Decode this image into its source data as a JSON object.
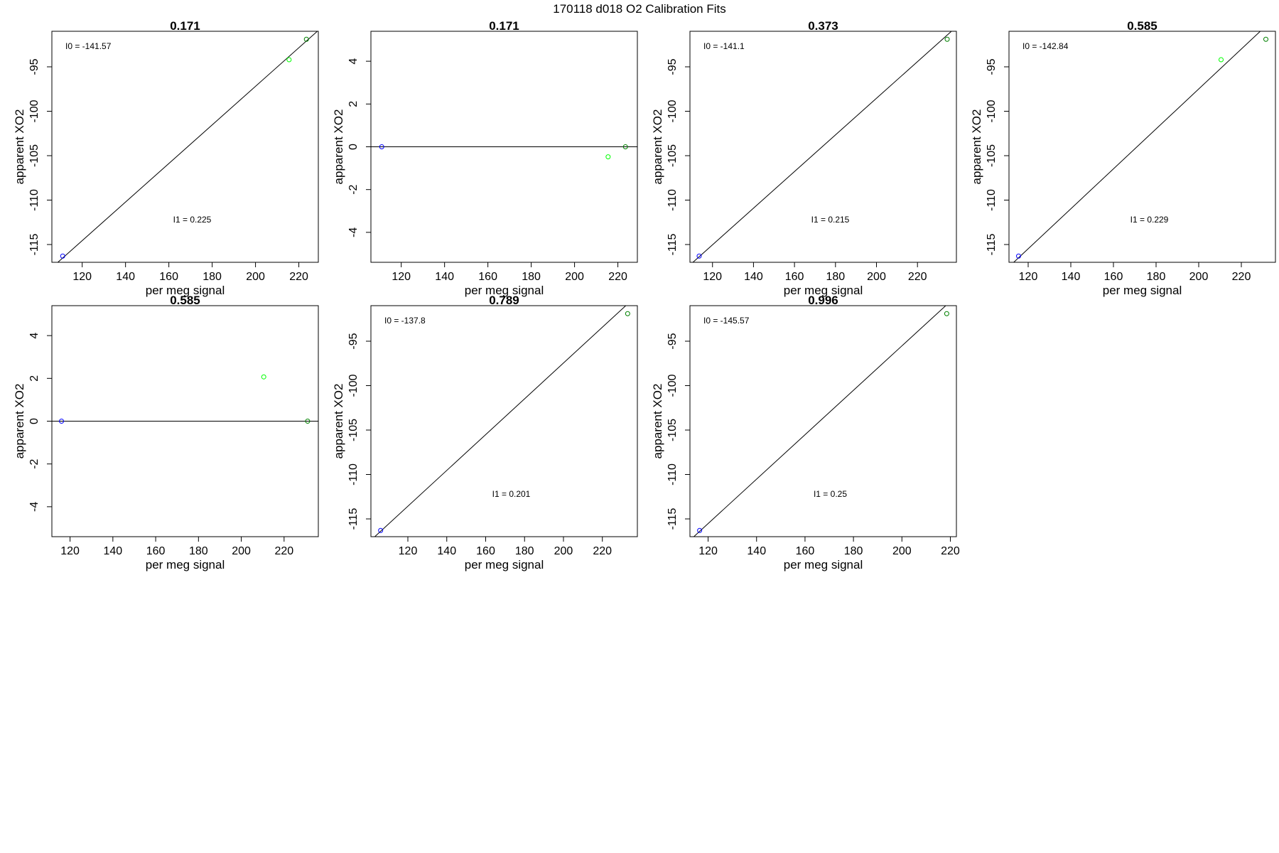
{
  "figure": {
    "title": "170118   d018   O2 Calibration Fits"
  },
  "chart_data": [
    {
      "type": "scatter",
      "title": "0.171",
      "xlabel": "per meg signal",
      "ylabel": "apparent XO2",
      "xlim": [
        106,
        229
      ],
      "ylim": [
        -117,
        -91
      ],
      "xticks": [
        120,
        140,
        160,
        180,
        200,
        220
      ],
      "xtick_labels": [
        "120",
        "140",
        "160",
        "180",
        "200",
        "220"
      ],
      "yticks": [
        -95,
        -100,
        -105,
        -110,
        -115
      ],
      "ytick_labels": [
        "-95",
        "-100",
        "-105",
        "-110",
        "-115"
      ],
      "series": [
        {
          "color": "#0000ff",
          "points": [
            {
              "x": 111,
              "y": -116.3
            }
          ]
        },
        {
          "color": "#00ff00",
          "points": [
            {
              "x": 215.5,
              "y": -94.2
            }
          ]
        },
        {
          "color": "#008000",
          "points": [
            {
              "x": 223.5,
              "y": -91.9
            }
          ]
        }
      ],
      "fit_line": {
        "x": [
          106,
          229
        ],
        "y": [
          -117.6,
          -90.9
        ]
      },
      "annotations": [
        {
          "text": "I0 =  -141.57",
          "pos": "top-left"
        },
        {
          "text": "I1 =  0.225",
          "pos": "center-bottom"
        }
      ]
    },
    {
      "type": "scatter",
      "title": "0.171",
      "xlabel": "per meg signal",
      "ylabel": "apparent XO2",
      "xlim": [
        106,
        229
      ],
      "ylim": [
        -5.4,
        5.4
      ],
      "xticks": [
        120,
        140,
        160,
        180,
        200,
        220
      ],
      "xtick_labels": [
        "120",
        "140",
        "160",
        "180",
        "200",
        "220"
      ],
      "yticks": [
        4,
        2,
        0,
        -2,
        -4
      ],
      "ytick_labels": [
        "4",
        "2",
        "0",
        "-2",
        "-4"
      ],
      "series": [
        {
          "color": "#0000ff",
          "points": [
            {
              "x": 111,
              "y": 0
            }
          ]
        },
        {
          "color": "#00ff00",
          "points": [
            {
              "x": 215.5,
              "y": -0.47
            }
          ]
        },
        {
          "color": "#008000",
          "points": [
            {
              "x": 223.5,
              "y": 0
            }
          ]
        }
      ],
      "fit_line": {
        "x": [
          106,
          229
        ],
        "y": [
          0,
          0
        ]
      },
      "annotations": []
    },
    {
      "type": "scatter",
      "title": "0.373",
      "xlabel": "per meg signal",
      "ylabel": "apparent XO2",
      "xlim": [
        109,
        239
      ],
      "ylim": [
        -117,
        -91
      ],
      "xticks": [
        120,
        140,
        160,
        180,
        200,
        220
      ],
      "xtick_labels": [
        "120",
        "140",
        "160",
        "180",
        "200",
        "220"
      ],
      "yticks": [
        -95,
        -100,
        -105,
        -110,
        -115
      ],
      "ytick_labels": [
        "-95",
        "-100",
        "-105",
        "-110",
        "-115"
      ],
      "series": [
        {
          "color": "#0000ff",
          "points": [
            {
              "x": 113.5,
              "y": -116.3
            }
          ]
        },
        {
          "color": "#008000",
          "points": [
            {
              "x": 234.5,
              "y": -91.9
            }
          ]
        }
      ],
      "fit_line": {
        "x": [
          109,
          239
        ],
        "y": [
          -117.3,
          -90.5
        ]
      },
      "annotations": [
        {
          "text": "I0 =  -141.1",
          "pos": "top-left"
        },
        {
          "text": "I1 =  0.215",
          "pos": "center-bottom"
        }
      ]
    },
    {
      "type": "scatter",
      "title": "0.585",
      "xlabel": "per meg signal",
      "ylabel": "apparent XO2",
      "xlim": [
        111,
        236
      ],
      "ylim": [
        -117,
        -91
      ],
      "xticks": [
        120,
        140,
        160,
        180,
        200,
        220
      ],
      "xtick_labels": [
        "120",
        "140",
        "160",
        "180",
        "200",
        "220"
      ],
      "yticks": [
        -95,
        -100,
        -105,
        -110,
        -115
      ],
      "ytick_labels": [
        "-95",
        "-100",
        "-105",
        "-110",
        "-115"
      ],
      "series": [
        {
          "color": "#0000ff",
          "points": [
            {
              "x": 115.5,
              "y": -116.3
            }
          ]
        },
        {
          "color": "#00ff00",
          "points": [
            {
              "x": 210.5,
              "y": -94.2
            }
          ]
        },
        {
          "color": "#008000",
          "points": [
            {
              "x": 231.5,
              "y": -91.9
            }
          ]
        }
      ],
      "fit_line": {
        "x": [
          111,
          236
        ],
        "y": [
          -117.5,
          -89.4
        ]
      },
      "annotations": [
        {
          "text": "I0 =  -142.84",
          "pos": "top-left"
        },
        {
          "text": "I1 =  0.229",
          "pos": "center-bottom"
        }
      ]
    },
    {
      "type": "scatter",
      "title": "0.585",
      "xlabel": "per meg signal",
      "ylabel": "apparent XO2",
      "xlim": [
        111.5,
        236
      ],
      "ylim": [
        -5.4,
        5.4
      ],
      "xticks": [
        120,
        140,
        160,
        180,
        200,
        220
      ],
      "xtick_labels": [
        "120",
        "140",
        "160",
        "180",
        "200",
        "220"
      ],
      "yticks": [
        4,
        2,
        0,
        -2,
        -4
      ],
      "ytick_labels": [
        "4",
        "2",
        "0",
        "-2",
        "-4"
      ],
      "series": [
        {
          "color": "#0000ff",
          "points": [
            {
              "x": 116,
              "y": 0
            }
          ]
        },
        {
          "color": "#00ff00",
          "points": [
            {
              "x": 210.5,
              "y": 2.07
            }
          ]
        },
        {
          "color": "#008000",
          "points": [
            {
              "x": 231,
              "y": 0
            }
          ]
        }
      ],
      "fit_line": {
        "x": [
          111.5,
          236
        ],
        "y": [
          0,
          0
        ]
      },
      "annotations": []
    },
    {
      "type": "scatter",
      "title": "0.789",
      "xlabel": "per meg signal",
      "ylabel": "apparent XO2",
      "xlim": [
        101,
        238
      ],
      "ylim": [
        -117,
        -91
      ],
      "xticks": [
        120,
        140,
        160,
        180,
        200,
        220
      ],
      "xtick_labels": [
        "120",
        "140",
        "160",
        "180",
        "200",
        "220"
      ],
      "yticks": [
        -95,
        -100,
        -105,
        -110,
        -115
      ],
      "ytick_labels": [
        "-95",
        "-100",
        "-105",
        "-110",
        "-115"
      ],
      "series": [
        {
          "color": "#0000ff",
          "points": [
            {
              "x": 106,
              "y": -116.3
            }
          ]
        },
        {
          "color": "#008000",
          "points": [
            {
              "x": 233,
              "y": -91.9
            }
          ]
        }
      ],
      "fit_line": {
        "x": [
          101,
          238
        ],
        "y": [
          -117.4,
          -89.8
        ]
      },
      "annotations": [
        {
          "text": "I0 =  -137.8",
          "pos": "top-left"
        },
        {
          "text": "I1 =  0.201",
          "pos": "center-bottom"
        }
      ]
    },
    {
      "type": "scatter",
      "title": "0.996",
      "xlabel": "per meg signal",
      "ylabel": "apparent XO2",
      "xlim": [
        112.5,
        222.5
      ],
      "ylim": [
        -117,
        -91
      ],
      "xticks": [
        120,
        140,
        160,
        180,
        200,
        220
      ],
      "xtick_labels": [
        "120",
        "140",
        "160",
        "180",
        "200",
        "220"
      ],
      "yticks": [
        -95,
        -100,
        -105,
        -110,
        -115
      ],
      "ytick_labels": [
        "-95",
        "-100",
        "-105",
        "-110",
        "-115"
      ],
      "series": [
        {
          "color": "#0000ff",
          "points": [
            {
              "x": 116.5,
              "y": -116.3
            }
          ]
        },
        {
          "color": "#008000",
          "points": [
            {
              "x": 218.5,
              "y": -91.9
            }
          ]
        }
      ],
      "fit_line": {
        "x": [
          112.5,
          222.5
        ],
        "y": [
          -117.4,
          -89.9
        ]
      },
      "annotations": [
        {
          "text": "I0 =  -145.57",
          "pos": "top-left"
        },
        {
          "text": "I1 =  0.25",
          "pos": "center-bottom"
        }
      ]
    }
  ]
}
